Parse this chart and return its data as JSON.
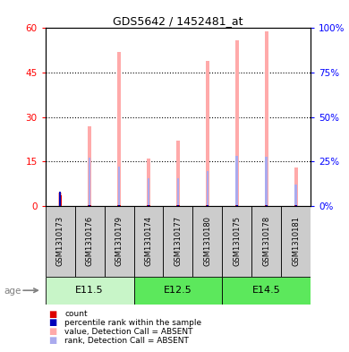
{
  "title": "GDS5642 / 1452481_at",
  "samples": [
    "GSM1310173",
    "GSM1310176",
    "GSM1310179",
    "GSM1310174",
    "GSM1310177",
    "GSM1310180",
    "GSM1310175",
    "GSM1310178",
    "GSM1310181"
  ],
  "groups": [
    {
      "label": "E11.5",
      "start": 0,
      "end": 3
    },
    {
      "label": "E12.5",
      "start": 3,
      "end": 6
    },
    {
      "label": "E14.5",
      "start": 6,
      "end": 9
    }
  ],
  "group_colors": [
    "#C8F5C8",
    "#5CE85C",
    "#5CE85C"
  ],
  "absent_values": [
    4.5,
    27.0,
    52.0,
    16.0,
    22.0,
    49.0,
    56.0,
    59.0,
    13.0
  ],
  "absent_ranks_pct": [
    8.0,
    27.0,
    22.0,
    15.5,
    15.5,
    19.5,
    28.0,
    27.5,
    12.0
  ],
  "count_values": [
    3.5,
    0.3,
    0.3,
    0.3,
    0.3,
    0.3,
    0.3,
    0.3,
    0.3
  ],
  "percentile_values_pct": [
    8.0,
    0.3,
    0.3,
    0.3,
    0.3,
    0.3,
    0.3,
    0.3,
    0.3
  ],
  "ylim_left": [
    0,
    60
  ],
  "ylim_right": [
    0,
    100
  ],
  "yticks_left": [
    0,
    15,
    30,
    45,
    60
  ],
  "ytick_labels_left": [
    "0",
    "15",
    "30",
    "45",
    "60"
  ],
  "ytick_labels_right": [
    "0%",
    "25%",
    "50%",
    "75%",
    "100%"
  ],
  "absent_color": "#FFAAAA",
  "absent_rank_color": "#AAAAEE",
  "count_color": "#DD0000",
  "percentile_color": "#0000BB",
  "bg_color": "#FFFFFF",
  "sample_bg": "#CCCCCC",
  "legend_items": [
    {
      "label": "count",
      "color": "#DD0000"
    },
    {
      "label": "percentile rank within the sample",
      "color": "#0000BB"
    },
    {
      "label": "value, Detection Call = ABSENT",
      "color": "#FFAAAA"
    },
    {
      "label": "rank, Detection Call = ABSENT",
      "color": "#AAAAEE"
    }
  ]
}
